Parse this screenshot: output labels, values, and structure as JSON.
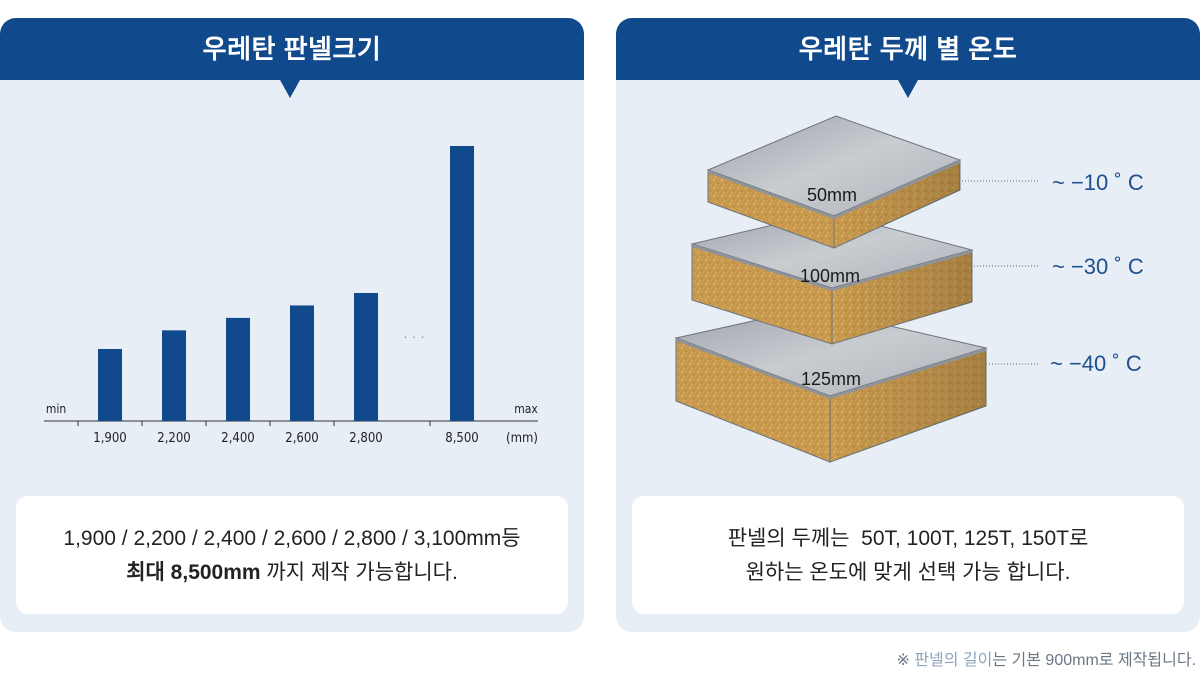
{
  "left_panel": {
    "title": "우레탄 판넬크기",
    "caption_line1": "1,900 / 2,200 / 2,400 / 2,600 / 2,800 / 3,100mm등",
    "caption_line2_bold": "최대 8,500mm",
    "caption_line2_rest": " 까지 제작 가능합니다."
  },
  "chart_data": {
    "type": "bar",
    "categories": [
      "1,900",
      "2,200",
      "2,400",
      "2,600",
      "2,800",
      "8,500"
    ],
    "values": [
      1900,
      2200,
      2400,
      2600,
      2800,
      8500
    ],
    "xlabel": "(mm)",
    "ylabel": "",
    "axis_min_label": "min",
    "axis_max_label": "max",
    "gap_marker": "· · ·",
    "bar_color": "#114a8c",
    "grid": false
  },
  "right_panel": {
    "title": "우레탄 두께 별 온도",
    "panels": [
      {
        "label": "50mm",
        "temp": "~ −10 ˚ C"
      },
      {
        "label": "100mm",
        "temp": "~ −30 ˚ C"
      },
      {
        "label": "125mm",
        "temp": "~ −40 ˚ C"
      }
    ],
    "caption_line1": "판넬의 두께는  50T, 100T, 125T, 150T로",
    "caption_line2": "원하는 온도에 맞게 선택 가능 합니다."
  },
  "footnote": {
    "prefix": "※ ",
    "highlight": "판넬의 길이",
    "rest": "는 기본 900mm로 제작됩니다."
  },
  "colors": {
    "header_blue": "#114a8c",
    "panel_bg": "#e8eef5",
    "foam": "#c99a4e",
    "steel": "#b8bcc2"
  }
}
